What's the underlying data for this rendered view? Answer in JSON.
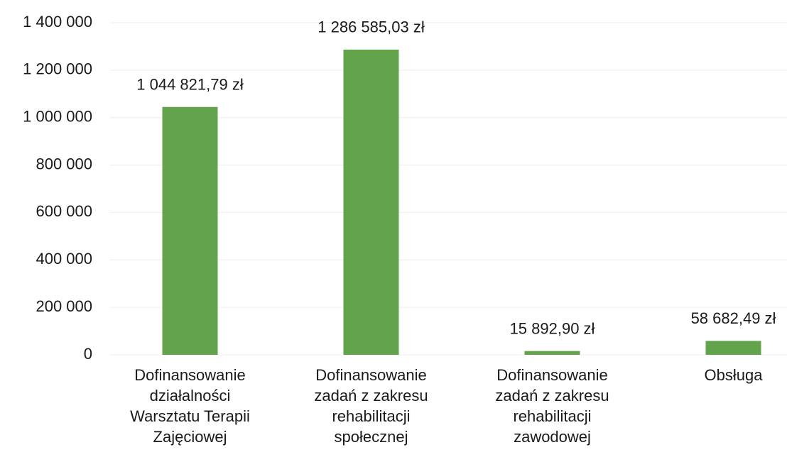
{
  "chart_data": {
    "type": "bar",
    "categories": [
      "Dofinansowanie działalności Warsztatu Terapii Zajęciowej",
      "Dofinansowanie zadań z zakresu rehabilitacji społecznej",
      "Dofinansowanie zadań z zakresu rehabilitacji zawodowej",
      "Obsługa"
    ],
    "values": [
      1044821.79,
      1286585.03,
      15892.9,
      58682.49
    ],
    "value_labels": [
      "1 044 821,79 zł",
      "1 286 585,03 zł",
      "15 892,90 zł",
      "58 682,49 zł"
    ],
    "color": "#62a34b",
    "ylim": [
      0,
      1400000
    ],
    "yticks": [
      0,
      {
        "value": 200000,
        "label": "200 000"
      },
      {
        "value": 400000,
        "label": "400 000"
      },
      {
        "value": 600000,
        "label": "600 000"
      },
      {
        "value": 800000,
        "label": "800 000"
      },
      {
        "value": 1000000,
        "label": "1 000 000"
      },
      {
        "value": 1200000,
        "label": "1 200 000"
      },
      {
        "value": 1400000,
        "label": "1 400 000"
      }
    ],
    "grid": true
  }
}
